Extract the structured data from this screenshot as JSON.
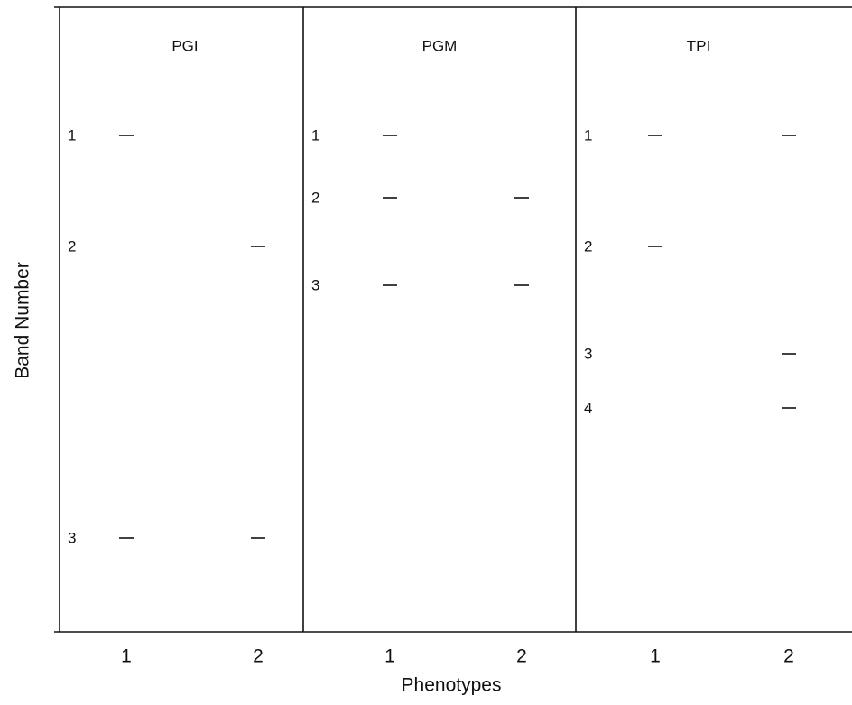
{
  "y_axis_label": "Band Number",
  "x_axis_label": "Phenotypes",
  "panels": [
    {
      "title": "PGI",
      "x_ticks": [
        "1",
        "2"
      ],
      "bands": [
        {
          "label": "1",
          "present": [
            true,
            false
          ]
        },
        {
          "label": "2",
          "present": [
            false,
            true
          ]
        },
        {
          "label": "3",
          "present": [
            true,
            true
          ]
        }
      ]
    },
    {
      "title": "PGM",
      "x_ticks": [
        "1",
        "2"
      ],
      "bands": [
        {
          "label": "1",
          "present": [
            true,
            false
          ]
        },
        {
          "label": "2",
          "present": [
            true,
            true
          ]
        },
        {
          "label": "3",
          "present": [
            true,
            true
          ]
        }
      ]
    },
    {
      "title": "TPI",
      "x_ticks": [
        "1",
        "2"
      ],
      "bands": [
        {
          "label": "1",
          "present": [
            true,
            true
          ]
        },
        {
          "label": "2",
          "present": [
            true,
            false
          ]
        },
        {
          "label": "3",
          "present": [
            false,
            true
          ]
        },
        {
          "label": "4",
          "present": [
            false,
            true
          ]
        }
      ]
    }
  ]
}
